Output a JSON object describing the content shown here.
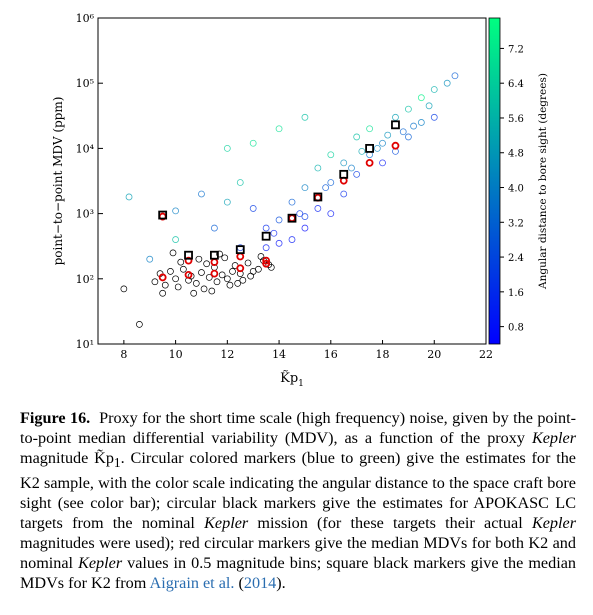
{
  "chart_data": {
    "type": "scatter",
    "ylabel": "point−to−point MDV (ppm)",
    "xlabel": "K̃p",
    "xlabel_subscript": "1",
    "xlim": [
      7,
      22
    ],
    "xticks": [
      8,
      10,
      12,
      14,
      16,
      18,
      20,
      22
    ],
    "ylim": [
      10,
      1000000
    ],
    "yscale": "log",
    "yticks": [
      {
        "value": 10,
        "label": "10¹"
      },
      {
        "value": 100,
        "label": "10²"
      },
      {
        "value": 1000,
        "label": "10³"
      },
      {
        "value": 10000,
        "label": "10⁴"
      },
      {
        "value": 100000,
        "label": "10⁵"
      },
      {
        "value": 1000000,
        "label": "10⁶"
      }
    ],
    "colorbar": {
      "label": "Angular distance to bore sight (degrees)",
      "lim": [
        0.4,
        7.9
      ],
      "ticks": [
        0.8,
        1.6,
        2.4,
        3.2,
        {
          "value": 4,
          "label": "4.0"
        },
        4.8,
        5.6,
        6.4,
        7.2
      ],
      "colors": [
        "#0000ff",
        "#00ff80"
      ]
    },
    "series": [
      {
        "marker": "circle",
        "linewidth": 0.8,
        "colorbar": true,
        "x": [
          10,
          11,
          12,
          12.5,
          13,
          13.5,
          14,
          14.5,
          14.5,
          15,
          15,
          15.5,
          15.5,
          16,
          16,
          16.5,
          16.5,
          17,
          17,
          17.5,
          17.5,
          18,
          18,
          18.5,
          18.5,
          19,
          19,
          19.5,
          19.5,
          20,
          20,
          20.5,
          20.8,
          13,
          12,
          14,
          15,
          11.5,
          12.5,
          13.5,
          14,
          15,
          16,
          8.2,
          9,
          10,
          16.8,
          17.8,
          18.8,
          19.8,
          15.8,
          14.8,
          13.8,
          17.2,
          18.2,
          19.2
        ],
        "y": [
          1100,
          2000,
          1500,
          3000,
          1200,
          600,
          800,
          1500,
          400,
          2500,
          900,
          5000,
          1200,
          3000,
          8000,
          2000,
          6000,
          4000,
          15000,
          8000,
          20000,
          6000,
          12000,
          30000,
          9000,
          15000,
          40000,
          25000,
          60000,
          30000,
          80000,
          100000,
          130000,
          12000,
          10000,
          20000,
          30000,
          600,
          300,
          300,
          350,
          600,
          1000,
          1800,
          200,
          400,
          5000,
          10000,
          18000,
          45000,
          2500,
          1000,
          500,
          9000,
          16000,
          22000
        ],
        "c": [
          4,
          3.5,
          5,
          6,
          2,
          1.5,
          2.5,
          3,
          1,
          4,
          2,
          5.5,
          1.2,
          3,
          6.5,
          1.5,
          4.5,
          2,
          6,
          3.5,
          7,
          1,
          4,
          5,
          2.5,
          3,
          6,
          4,
          7.5,
          2,
          5.5,
          4.5,
          3,
          7,
          6.5,
          7,
          6,
          3,
          2,
          1,
          0.8,
          0.6,
          0.9,
          5,
          4,
          6,
          3.8,
          4.2,
          3.2,
          5,
          2.8,
          1.8,
          1.2,
          5.2,
          4.6,
          3.6
        ]
      },
      {
        "marker": "circle",
        "color": "#000000",
        "linewidth": 0.7,
        "x": [
          9.2,
          9.4,
          9.6,
          9.8,
          10,
          10.1,
          10.3,
          10.5,
          10.6,
          10.8,
          11,
          11.1,
          11.3,
          11.5,
          11.6,
          11.8,
          12,
          12.1,
          12.3,
          12.5,
          12.6,
          12.8,
          13,
          13.2,
          13.4,
          13.6,
          9.5,
          10.2,
          10.9,
          11.4,
          11.9,
          12.4,
          12.9,
          13.3,
          10.7,
          11.2,
          12.2,
          8,
          8.6,
          9.9,
          11.7,
          13.7
        ],
        "y": [
          90,
          120,
          80,
          130,
          100,
          75,
          140,
          95,
          110,
          85,
          125,
          70,
          105,
          150,
          90,
          115,
          100,
          80,
          160,
          120,
          95,
          175,
          130,
          140,
          190,
          165,
          60,
          180,
          200,
          65,
          210,
          85,
          110,
          220,
          60,
          170,
          130,
          70,
          20,
          250,
          240,
          150
        ]
      },
      {
        "marker": "circle",
        "color": "#e00000",
        "linewidth": 1.8,
        "x": [
          9.5,
          10.5,
          11.5,
          12.5,
          13.5,
          9.5,
          10.5,
          11.5,
          12.5,
          13.5,
          14.5,
          15.5,
          16.5,
          17.5,
          18.5
        ],
        "y": [
          105,
          115,
          120,
          145,
          170,
          900,
          190,
          180,
          220,
          190,
          850,
          1750,
          3200,
          6000,
          11000
        ]
      },
      {
        "marker": "square",
        "color": "#000000",
        "linewidth": 1.8,
        "x": [
          9.5,
          10.5,
          11.5,
          12.5,
          13.5,
          14.5,
          15.5,
          16.5,
          17.5,
          18.5
        ],
        "y": [
          950,
          230,
          230,
          280,
          450,
          850,
          1800,
          4000,
          10000,
          23000
        ]
      }
    ]
  },
  "caption": {
    "label": "Figure 16.",
    "parts": [
      "Proxy for the short time scale (high frequency) noise, given by the point-to-point median differential variability (MDV), as a function of the proxy ",
      "Kepler",
      " magnitude K̃p",
      "1",
      ". Circular colored markers (blue to green) give the estimates for the K2 sample, with the color scale indicating the angular distance to the space craft bore sight (see color bar); circular black markers give the estimates for APOKASC LC targets from the nominal ",
      "Kepler",
      " mission (for these targets their actual ",
      "Kepler",
      " magnitudes were used); red circular markers give the median MDVs for both K2 and nominal ",
      "Kepler",
      " values in 0.5 magnitude bins; square black markers give the median MDVs for K2 from ",
      "Aigrain et al.",
      " (",
      "2014",
      ")."
    ]
  }
}
